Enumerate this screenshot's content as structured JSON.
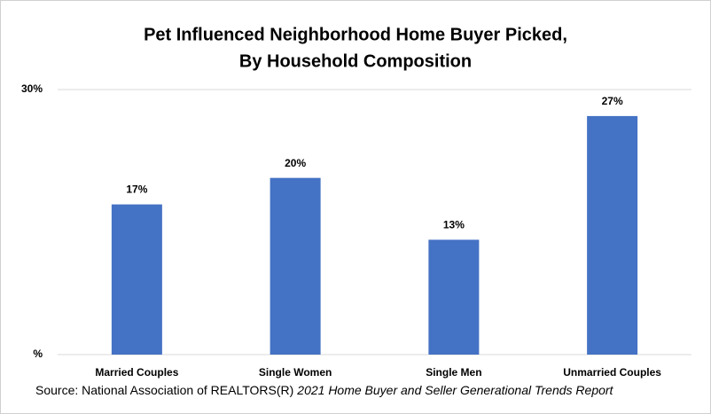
{
  "chart_data": {
    "type": "bar",
    "title": [
      "Pet Influenced Neighborhood Home Buyer Picked,",
      "By Household Composition"
    ],
    "categories": [
      "Married Couples",
      "Single Women",
      "Single Men",
      "Unmarried Couples"
    ],
    "values": [
      17,
      20,
      13,
      27
    ],
    "value_labels": [
      "17%",
      "20%",
      "13%",
      "27%"
    ],
    "color": "#4472c4",
    "ylim": [
      0,
      30
    ],
    "yticks": [
      {
        "value": 0,
        "label": "%"
      },
      {
        "value": 30,
        "label": "30%"
      }
    ],
    "grid": true,
    "source": "Source: National Association of REALTORS(R)",
    "source_report": "2021 Home Buyer and Seller Generational Trends Report"
  }
}
